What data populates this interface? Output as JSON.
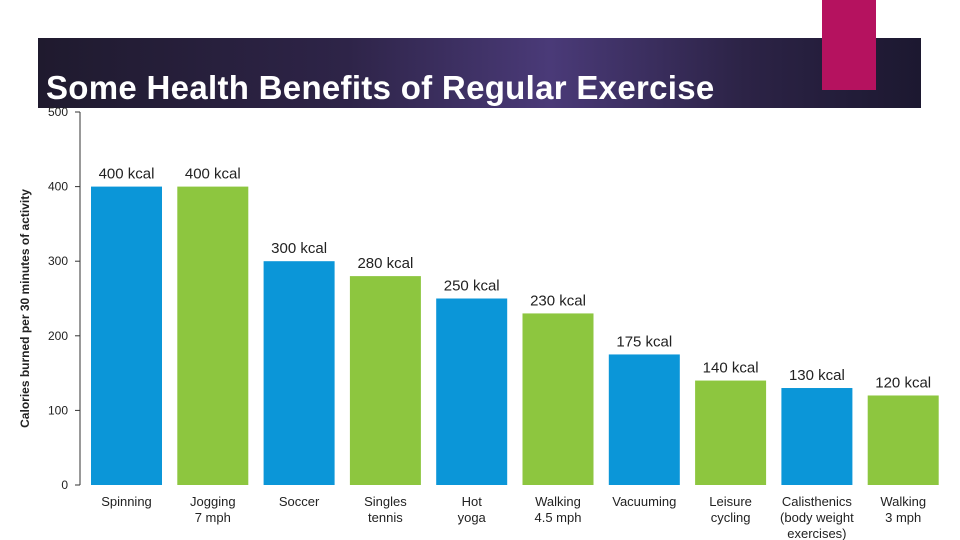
{
  "slide": {
    "title": "Some Health Benefits of Regular Exercise"
  },
  "colors": {
    "blue": "#0b96d8",
    "green": "#8dc63f",
    "accent": "#b5125f"
  },
  "chart_data": {
    "type": "bar",
    "title": "",
    "xlabel": "",
    "ylabel": "Calories burned per 30 minutes of activity",
    "ylim": [
      0,
      500
    ],
    "yticks": [
      0,
      100,
      200,
      300,
      400,
      500
    ],
    "grid": false,
    "categories": [
      [
        "Spinning"
      ],
      [
        "Jogging",
        "7 mph"
      ],
      [
        "Soccer"
      ],
      [
        "Singles",
        "tennis"
      ],
      [
        "Hot",
        "yoga"
      ],
      [
        "Walking",
        "4.5 mph"
      ],
      [
        "Vacuuming"
      ],
      [
        "Leisure",
        "cycling"
      ],
      [
        "Calisthenics",
        "(body weight",
        "exercises)"
      ],
      [
        "Walking",
        "3 mph"
      ]
    ],
    "values": [
      400,
      400,
      300,
      280,
      250,
      230,
      175,
      140,
      130,
      120
    ],
    "value_labels": [
      "400 kcal",
      "400 kcal",
      "300 kcal",
      "280 kcal",
      "250 kcal",
      "230 kcal",
      "175 kcal",
      "140 kcal",
      "130 kcal",
      "120 kcal"
    ],
    "bar_colors": [
      "blue",
      "green",
      "blue",
      "green",
      "blue",
      "green",
      "blue",
      "green",
      "blue",
      "green"
    ]
  }
}
